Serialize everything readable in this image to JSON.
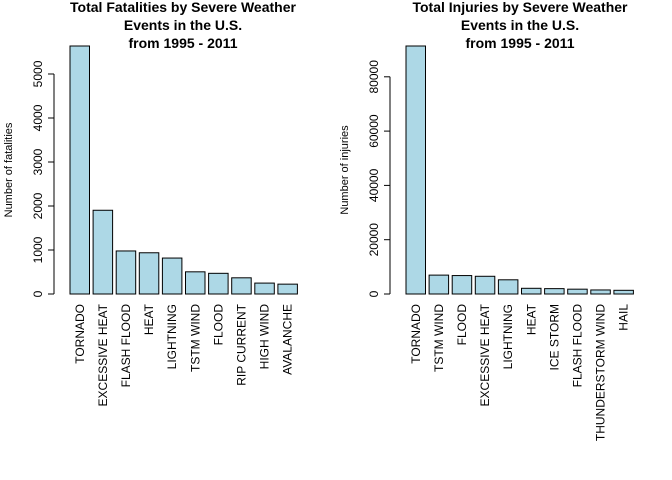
{
  "chart_data": [
    {
      "type": "bar",
      "title_lines": [
        "Total Fatalities by Severe Weather",
        "Events in the U.S.",
        "from 1995 - 2011"
      ],
      "xlabel": "",
      "ylabel": "Number of fatalities",
      "categories": [
        "TORNADO",
        "EXCESSIVE HEAT",
        "FLASH FLOOD",
        "HEAT",
        "LIGHTNING",
        "TSTM WIND",
        "FLOOD",
        "RIP CURRENT",
        "HIGH WIND",
        "AVALANCHE"
      ],
      "values": [
        5636,
        1903,
        978,
        937,
        817,
        504,
        470,
        368,
        248,
        224
      ],
      "yticks": [
        0,
        1000,
        2000,
        3000,
        4000,
        5000
      ],
      "ytick_labels": [
        "0",
        "1000",
        "2000",
        "3000",
        "4000",
        "5000"
      ],
      "ylim": [
        0,
        5636
      ],
      "bar_color": "#add8e6",
      "grid": false
    },
    {
      "type": "bar",
      "title_lines": [
        "Total Injuries by Severe Weather",
        "Events in the U.S.",
        "from 1995 - 2011"
      ],
      "xlabel": "",
      "ylabel": "Number of injuries",
      "categories": [
        "TORNADO",
        "TSTM WIND",
        "FLOOD",
        "EXCESSIVE HEAT",
        "LIGHTNING",
        "HEAT",
        "ICE STORM",
        "FLASH FLOOD",
        "THUNDERSTORM WIND",
        "HAIL"
      ],
      "values": [
        91346,
        6957,
        6789,
        6525,
        5230,
        2100,
        1975,
        1777,
        1488,
        1361
      ],
      "yticks": [
        0,
        20000,
        40000,
        60000,
        80000
      ],
      "ytick_labels": [
        "0",
        "20000",
        "40000",
        "60000",
        "80000"
      ],
      "ylim": [
        0,
        91346
      ],
      "bar_color": "#add8e6",
      "grid": false
    }
  ]
}
